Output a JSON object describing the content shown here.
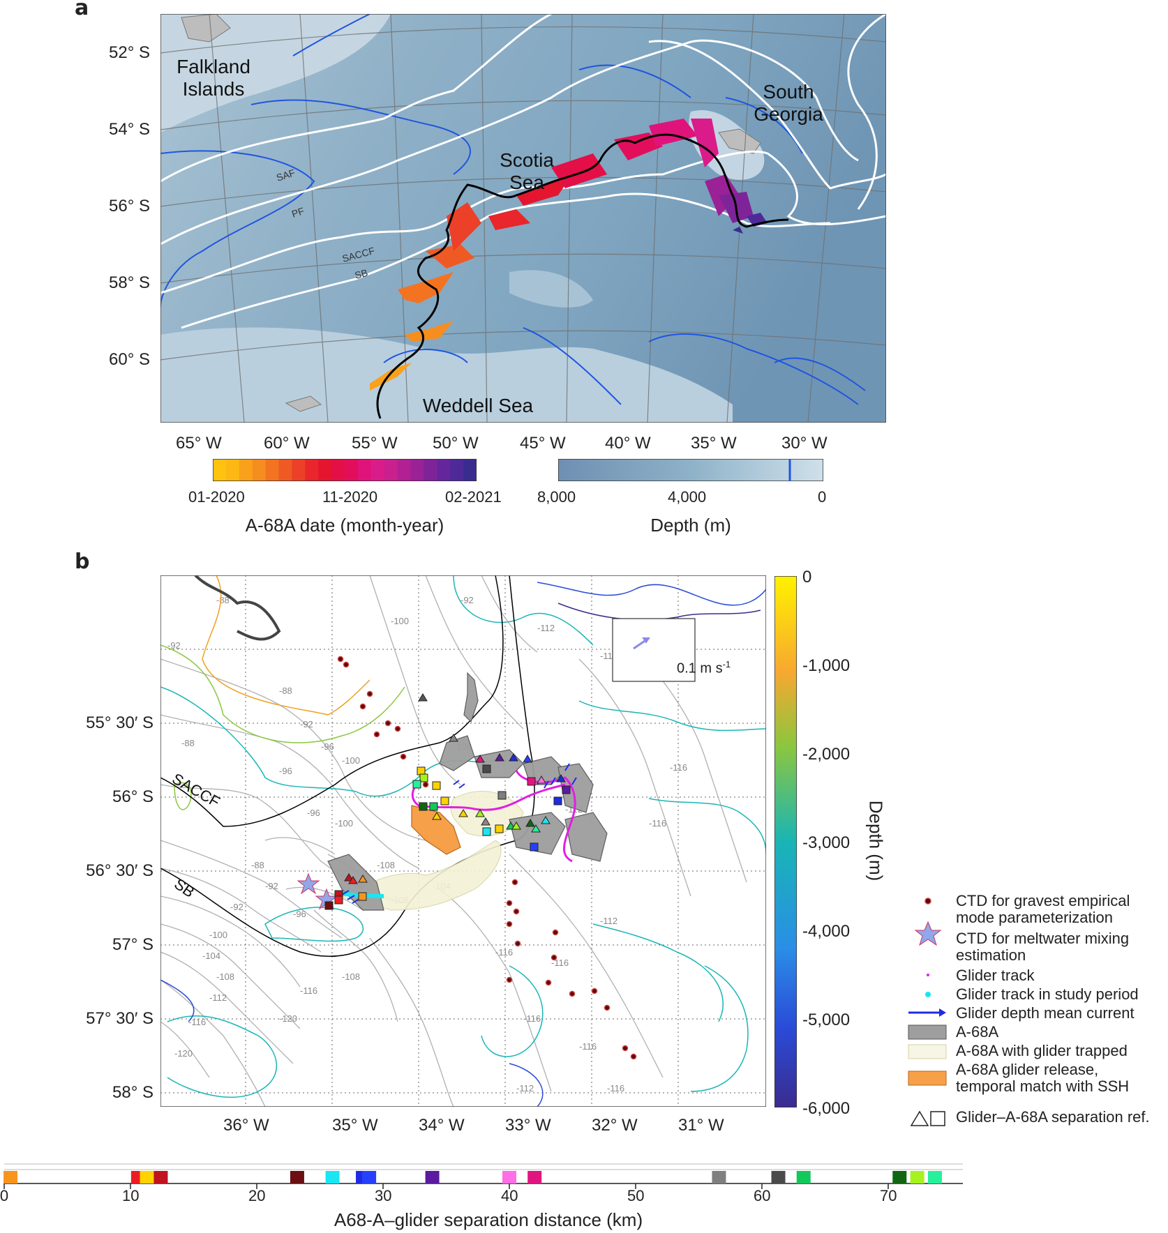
{
  "panel_a": {
    "label": "a",
    "lat_ticks": [
      "52° S",
      "54° S",
      "56° S",
      "58° S",
      "60° S"
    ],
    "lon_ticks": [
      "65° W",
      "60° W",
      "55° W",
      "50° W",
      "45° W",
      "40° W",
      "35° W",
      "30° W"
    ],
    "places": {
      "falkland": "Falkland\nIslands",
      "south_georgia": "South\nGeorgia",
      "scotia": "Scotia\nSea",
      "weddell": "Weddell Sea"
    },
    "front_labels": [
      "SAF",
      "PF",
      "SACCF",
      "SB"
    ],
    "colorbar_date": {
      "ticks": [
        "01-2020",
        "11-2020",
        "02-2021"
      ],
      "label": "A-68A date (month-year)",
      "colors": [
        "#FFC20E",
        "#FDB813",
        "#F9A11B",
        "#F68D1F",
        "#F37321",
        "#EF5A24",
        "#EC4028",
        "#E8262B",
        "#E5152F",
        "#E40F46",
        "#E20E5C",
        "#E0137A",
        "#D91C8A",
        "#C9208E",
        "#B22093",
        "#9B2196",
        "#7F2498",
        "#66269B",
        "#4D2A98",
        "#3A2C8F"
      ]
    },
    "colorbar_depth": {
      "ticks": [
        "8,000",
        "4,000",
        "0"
      ],
      "label": "Depth (m)"
    }
  },
  "panel_b": {
    "label": "b",
    "lat_ticks": [
      "55° 30′ S",
      "56° S",
      "56° 30′ S",
      "57° S",
      "57° 30′ S",
      "58° S"
    ],
    "lon_ticks": [
      "36° W",
      "35° W",
      "34° W",
      "33° W",
      "32° W",
      "31° W"
    ],
    "front_labels": [
      "SACCF",
      "SB"
    ],
    "scale_label": "0.1 m s",
    "scale_sup": "-1",
    "depth_colorbar": {
      "ticks": [
        "0",
        "-1,000",
        "-2,000",
        "-3,000",
        "-4,000",
        "-5,000",
        "-6,000"
      ],
      "label": "Depth (m)"
    },
    "legend": [
      {
        "text": "CTD for gravest empirical mode parameterization",
        "symbol": "ctd-dot"
      },
      {
        "text": "CTD for meltwater mixing estimation",
        "symbol": "star"
      },
      {
        "text": "Glider track",
        "symbol": "magenta-dot"
      },
      {
        "text": "Glider track in study period",
        "symbol": "cyan-dot"
      },
      {
        "text": "Glider depth mean current",
        "symbol": "blue-arrow"
      },
      {
        "text": "A-68A",
        "symbol": "grey-box"
      },
      {
        "text": "A-68A with glider trapped",
        "symbol": "cream-box"
      },
      {
        "text": "A-68A glider release, temporal match with SSH",
        "symbol": "orange-box"
      },
      {
        "text": "Glider–A-68A separation ref.",
        "symbol": "tri-square"
      }
    ],
    "ssh_labels": [
      "-88",
      "-92",
      "-96",
      "-100",
      "-104",
      "-108",
      "-112",
      "-116",
      "-120"
    ]
  },
  "panel_c": {
    "x_ticks": [
      "0",
      "10",
      "20",
      "30",
      "40",
      "50",
      "60",
      "70"
    ],
    "xlabel": "A68-A–glider separation distance (km)",
    "markers": [
      {
        "km": 0.5,
        "color": "#F7941D"
      },
      {
        "km": 10.6,
        "color": "#ED1C24"
      },
      {
        "km": 11.3,
        "color": "#FFD200"
      },
      {
        "km": 12.4,
        "color": "#C1121F"
      },
      {
        "km": 23.2,
        "color": "#6B0F12"
      },
      {
        "km": 26.0,
        "color": "#19E6F2"
      },
      {
        "km": 28.4,
        "color": "#1F2BE0"
      },
      {
        "km": 28.9,
        "color": "#2740FF"
      },
      {
        "km": 33.9,
        "color": "#5B1AA0"
      },
      {
        "km": 40.0,
        "color": "#FF6EE6"
      },
      {
        "km": 42.0,
        "color": "#E0157F"
      },
      {
        "km": 56.6,
        "color": "#7F7F7F"
      },
      {
        "km": 61.3,
        "color": "#4A4A4A"
      },
      {
        "km": 63.3,
        "color": "#12C85A"
      },
      {
        "km": 70.9,
        "color": "#116611"
      },
      {
        "km": 72.3,
        "color": "#A6F21F"
      },
      {
        "km": 73.7,
        "color": "#26F09A"
      }
    ]
  }
}
